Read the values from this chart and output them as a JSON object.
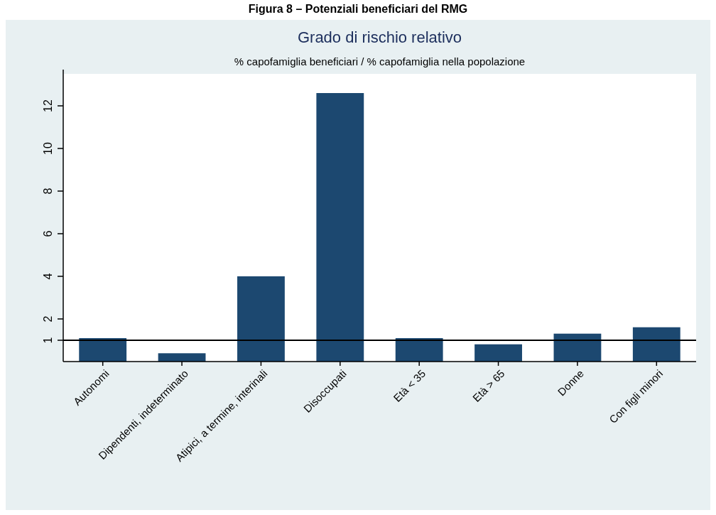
{
  "chart_data": {
    "type": "bar",
    "title": "Grado di rischio relativo",
    "subtitle": "% capofamiglia beneficiari / % capofamiglia nella popolazione",
    "annotations": [
      "Figura 8 – Potenziali beneficiari del RMG"
    ],
    "categories": [
      "Autonomi",
      "Dipendenti, indeterminato",
      "Atipici, a termine, interinali",
      "Disoccupati",
      "Età < 35",
      "Età > 65",
      "Donne",
      "Con figli minori"
    ],
    "values": [
      1.1,
      0.39,
      4.0,
      12.6,
      1.1,
      0.81,
      1.31,
      1.61
    ],
    "color": "#1c4870",
    "ylim": [
      0,
      13.5
    ],
    "yticks": [
      1,
      2,
      4,
      6,
      8,
      10,
      12
    ],
    "ref_lines": [
      {
        "axis": "y",
        "value": 1,
        "color": "#000000"
      }
    ],
    "grid": false
  }
}
